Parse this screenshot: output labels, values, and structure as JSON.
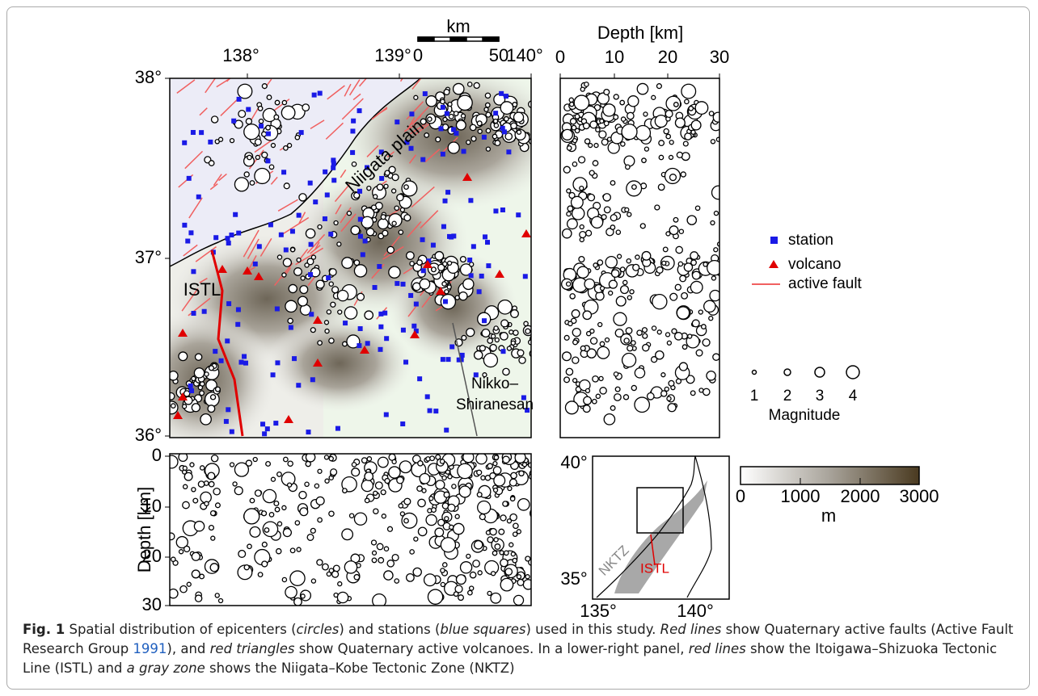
{
  "figure": {
    "map": {
      "lon_ticks": [
        "138°",
        "139°",
        "140°"
      ],
      "lat_ticks": [
        "38°",
        "37°",
        "36°"
      ],
      "scale_title": "km",
      "scale_ticks": [
        "0",
        "50"
      ],
      "labels": {
        "plain": "Niigata plain",
        "istl": "ISTL",
        "volcano_line1": "Nikko–",
        "volcano_line2": "Shiranesan"
      }
    },
    "depth_right": {
      "title": "Depth [km]",
      "ticks": [
        "0",
        "10",
        "20",
        "30"
      ]
    },
    "depth_bottom": {
      "title": "Depth [km]",
      "ticks": [
        "0",
        "10",
        "20",
        "30"
      ]
    },
    "legend": {
      "station": "station",
      "volcano": "volcano",
      "fault": "active fault",
      "magnitudes": [
        "1",
        "2",
        "3",
        "4"
      ],
      "magnitude_title": "Magnitude"
    },
    "inset": {
      "lat_ticks": [
        "40°",
        "35°"
      ],
      "lon_ticks": [
        "135°",
        "140°"
      ],
      "nktz": "NKTZ",
      "istl": "ISTL"
    },
    "colorbar": {
      "ticks": [
        "0",
        "1000",
        "2000",
        "3000"
      ],
      "unit": "m"
    }
  },
  "caption": {
    "parts": [
      "Fig. 1",
      "  Spatial distribution of epicenters (",
      "circles",
      ") and stations (",
      "blue squares",
      ") used in this study. ",
      "Red lines",
      " show Quaternary active faults (Active Fault Research Group ",
      "1991",
      "), and ",
      "red triangles",
      " show Quaternary active volcanoes. In a lower-right panel, ",
      "red lines",
      " show the Itoigawa–Shizuoka Tectonic Line (ISTL) and ",
      "a gray zone",
      " shows the Niigata–Kobe Tectonic Zone (NKTZ)"
    ]
  }
}
